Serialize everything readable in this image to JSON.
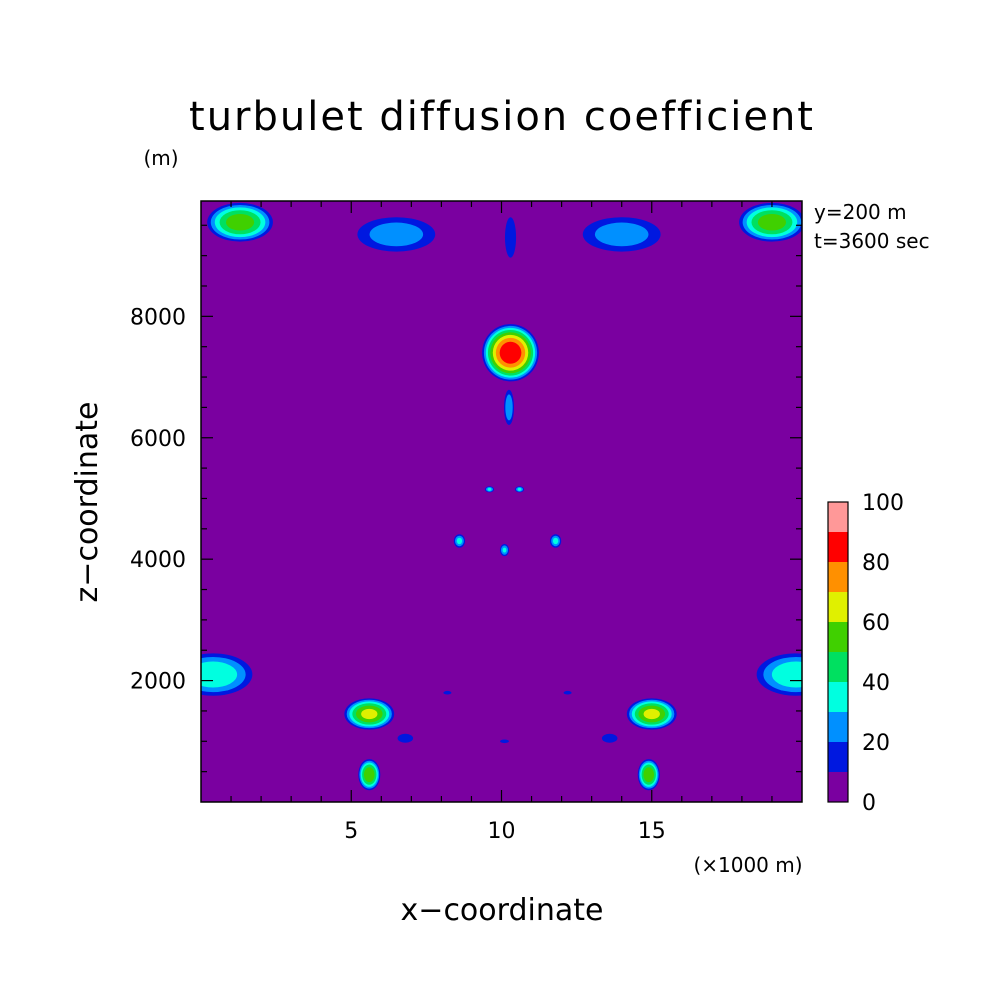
{
  "chart_data": {
    "type": "heatmap",
    "title": "turbulet diffusion coefficient",
    "z_unit": "(m)",
    "x_unit": "(×1000 m)",
    "xlabel": "x−coordinate",
    "ylabel": "z−coordinate",
    "annotations": [
      "y=200 m",
      "t=3600 sec"
    ],
    "xlim": [
      0,
      20
    ],
    "ylim": [
      0,
      9900
    ],
    "x_ticks": [
      5,
      10,
      15
    ],
    "x_tick_labels": [
      "5",
      "10",
      "15"
    ],
    "y_ticks": [
      2000,
      4000,
      6000,
      8000
    ],
    "y_tick_labels": [
      "2000",
      "4000",
      "6000",
      "8000"
    ],
    "colorbar": {
      "levels": [
        0,
        10,
        20,
        30,
        40,
        50,
        60,
        70,
        80,
        90,
        100
      ],
      "labels": [
        "0",
        "20",
        "40",
        "60",
        "80",
        "100"
      ],
      "colors": [
        "#7a00a0",
        "#0018e0",
        "#0090ff",
        "#00ffe0",
        "#00e060",
        "#40d000",
        "#e0f000",
        "#ff9000",
        "#ff0000",
        "#ff9898"
      ]
    },
    "background_value": 5,
    "features": [
      {
        "x": 10.3,
        "z": 7400,
        "rx": 1.0,
        "rz": 500,
        "peak": 88
      },
      {
        "x": 10.25,
        "z": 6500,
        "rx": 0.2,
        "rz": 350,
        "peak": 28
      },
      {
        "x": 10.3,
        "z": 9300,
        "rx": 0.25,
        "rz": 450,
        "peak": 18
      },
      {
        "x": 1.3,
        "z": 9550,
        "rx": 1.2,
        "rz": 350,
        "peak": 55
      },
      {
        "x": 19.0,
        "z": 9550,
        "rx": 1.2,
        "rz": 350,
        "peak": 55
      },
      {
        "x": 6.5,
        "z": 9350,
        "rx": 1.6,
        "rz": 350,
        "peak": 25
      },
      {
        "x": 14.0,
        "z": 9350,
        "rx": 1.6,
        "rz": 350,
        "peak": 25
      },
      {
        "x": 0.4,
        "z": 2100,
        "rx": 1.5,
        "rz": 400,
        "peak": 38
      },
      {
        "x": 19.8,
        "z": 2100,
        "rx": 1.5,
        "rz": 400,
        "peak": 38
      },
      {
        "x": 5.6,
        "z": 1450,
        "rx": 0.9,
        "rz": 280,
        "peak": 62
      },
      {
        "x": 15.0,
        "z": 1450,
        "rx": 0.9,
        "rz": 280,
        "peak": 62
      },
      {
        "x": 5.6,
        "z": 450,
        "rx": 0.4,
        "rz": 280,
        "peak": 58
      },
      {
        "x": 14.9,
        "z": 450,
        "rx": 0.4,
        "rz": 280,
        "peak": 58
      },
      {
        "x": 8.6,
        "z": 4300,
        "rx": 0.22,
        "rz": 130,
        "peak": 32
      },
      {
        "x": 11.8,
        "z": 4300,
        "rx": 0.22,
        "rz": 130,
        "peak": 32
      },
      {
        "x": 10.1,
        "z": 4150,
        "rx": 0.18,
        "rz": 120,
        "peak": 30
      },
      {
        "x": 9.6,
        "z": 5150,
        "rx": 0.18,
        "rz": 60,
        "peak": 30
      },
      {
        "x": 10.6,
        "z": 5150,
        "rx": 0.18,
        "rz": 60,
        "peak": 30
      },
      {
        "x": 6.8,
        "z": 1050,
        "rx": 0.35,
        "rz": 100,
        "peak": 18
      },
      {
        "x": 13.6,
        "z": 1050,
        "rx": 0.35,
        "rz": 100,
        "peak": 18
      },
      {
        "x": 10.1,
        "z": 1000,
        "rx": 0.2,
        "rz": 40,
        "peak": 18
      },
      {
        "x": 8.2,
        "z": 1800,
        "rx": 0.18,
        "rz": 40,
        "peak": 18
      },
      {
        "x": 12.2,
        "z": 1800,
        "rx": 0.18,
        "rz": 40,
        "peak": 18
      }
    ]
  }
}
